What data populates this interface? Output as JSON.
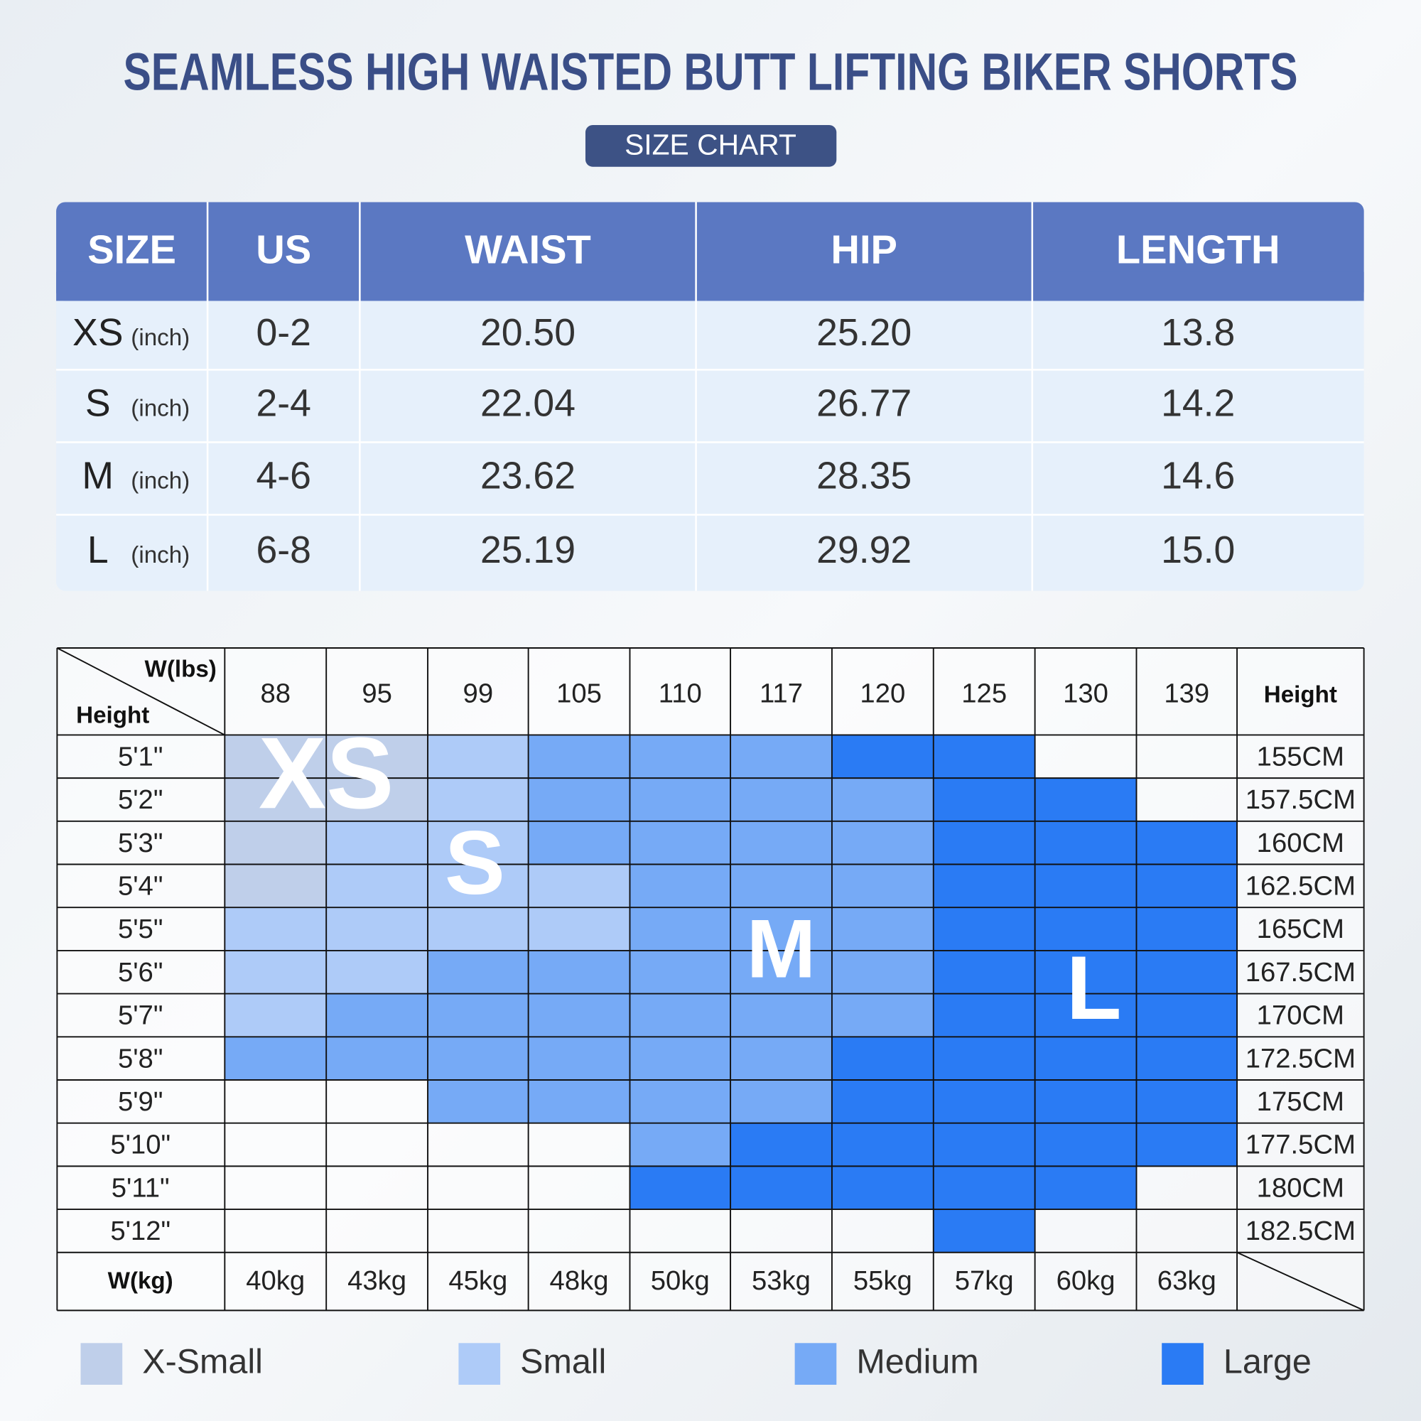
{
  "title": "SEAMLESS HIGH WAISTED BUTT LIFTING BIKER SHORTS",
  "badge": "SIZE CHART",
  "size_table": {
    "headers": [
      "SIZE",
      "US",
      "WAIST",
      "HIP",
      "LENGTH"
    ],
    "rows": [
      [
        "XS",
        "(inch)",
        "0-2",
        "20.50",
        "25.20",
        "13.8"
      ],
      [
        "S",
        "(inch)",
        "2-4",
        "22.04",
        "26.77",
        "14.2"
      ],
      [
        "M",
        "(inch)",
        "4-6",
        "23.62",
        "28.35",
        "14.6"
      ],
      [
        "L",
        "(inch)",
        "6-8",
        "25.19",
        "29.92",
        "15.0"
      ]
    ]
  },
  "fit_grid": {
    "corner_top": "W(lbs)",
    "corner_left": "Height",
    "weights_lbs": [
      88,
      95,
      99,
      105,
      110,
      117,
      120,
      125,
      130,
      139
    ],
    "height_header": "Height",
    "rows": [
      {
        "height": "5'1\"",
        "cm": "155CM",
        "cells": [
          "#bfcfea",
          "#bfcfea",
          "#aecbf8",
          "#76aaf6",
          "#76aaf6",
          "#76aaf6",
          "#2a7bf4",
          "#2a7bf4",
          null,
          null
        ]
      },
      {
        "height": "5'2\"",
        "cm": "157.5CM",
        "cells": [
          "#bfcfea",
          "#bfcfea",
          "#aecbf8",
          "#76aaf6",
          "#76aaf6",
          "#76aaf6",
          "#76aaf6",
          "#2a7bf4",
          "#2a7bf4",
          null
        ]
      },
      {
        "height": "5'3\"",
        "cm": "160CM",
        "cells": [
          "#bfcfea",
          "#aecbf8",
          "#aecbf8",
          "#76aaf6",
          "#76aaf6",
          "#76aaf6",
          "#76aaf6",
          "#2a7bf4",
          "#2a7bf4",
          "#2a7bf4"
        ]
      },
      {
        "height": "5'4\"",
        "cm": "162.5CM",
        "cells": [
          "#bfcfea",
          "#aecbf8",
          "#aecbf8",
          "#aecbf8",
          "#76aaf6",
          "#76aaf6",
          "#76aaf6",
          "#2a7bf4",
          "#2a7bf4",
          "#2a7bf4"
        ]
      },
      {
        "height": "5'5\"",
        "cm": "165CM",
        "cells": [
          "#aecbf8",
          "#aecbf8",
          "#aecbf8",
          "#aecbf8",
          "#76aaf6",
          "#76aaf6",
          "#76aaf6",
          "#2a7bf4",
          "#2a7bf4",
          "#2a7bf4"
        ]
      },
      {
        "height": "5'6\"",
        "cm": "167.5CM",
        "cells": [
          "#aecbf8",
          "#aecbf8",
          "#76aaf6",
          "#76aaf6",
          "#76aaf6",
          "#76aaf6",
          "#76aaf6",
          "#2a7bf4",
          "#2a7bf4",
          "#2a7bf4"
        ]
      },
      {
        "height": "5'7\"",
        "cm": "170CM",
        "cells": [
          "#aecbf8",
          "#76aaf6",
          "#76aaf6",
          "#76aaf6",
          "#76aaf6",
          "#76aaf6",
          "#76aaf6",
          "#2a7bf4",
          "#2a7bf4",
          "#2a7bf4"
        ]
      },
      {
        "height": "5'8\"",
        "cm": "172.5CM",
        "cells": [
          "#76aaf6",
          "#76aaf6",
          "#76aaf6",
          "#76aaf6",
          "#76aaf6",
          "#76aaf6",
          "#2a7bf4",
          "#2a7bf4",
          "#2a7bf4",
          "#2a7bf4"
        ]
      },
      {
        "height": "5'9\"",
        "cm": "175CM",
        "cells": [
          null,
          null,
          "#76aaf6",
          "#76aaf6",
          "#76aaf6",
          "#76aaf6",
          "#2a7bf4",
          "#2a7bf4",
          "#2a7bf4",
          "#2a7bf4"
        ]
      },
      {
        "height": "5'10\"",
        "cm": "177.5CM",
        "cells": [
          null,
          null,
          null,
          null,
          "#76aaf6",
          "#2a7bf4",
          "#2a7bf4",
          "#2a7bf4",
          "#2a7bf4",
          "#2a7bf4"
        ]
      },
      {
        "height": "5'11\"",
        "cm": "180CM",
        "cells": [
          null,
          null,
          null,
          null,
          "#2a7bf4",
          "#2a7bf4",
          "#2a7bf4",
          "#2a7bf4",
          "#2a7bf4",
          null
        ]
      },
      {
        "height": "5'12\"",
        "cm": "182.5CM",
        "cells": [
          null,
          null,
          null,
          null,
          null,
          null,
          null,
          "#2a7bf4",
          null,
          null
        ]
      }
    ],
    "kg_label": "W(kg)",
    "weights_kg": [
      "40kg",
      "43kg",
      "45kg",
      "48kg",
      "50kg",
      "53kg",
      "55kg",
      "57kg",
      "60kg",
      "63kg"
    ],
    "zone_labels": [
      "XS",
      "S",
      "M",
      "L"
    ]
  },
  "legend": [
    {
      "label": "X-Small",
      "color": "#bfcfea"
    },
    {
      "label": "Small",
      "color": "#aecbf8"
    },
    {
      "label": "Medium",
      "color": "#76aaf6"
    },
    {
      "label": "Large",
      "color": "#2a7bf4"
    }
  ]
}
